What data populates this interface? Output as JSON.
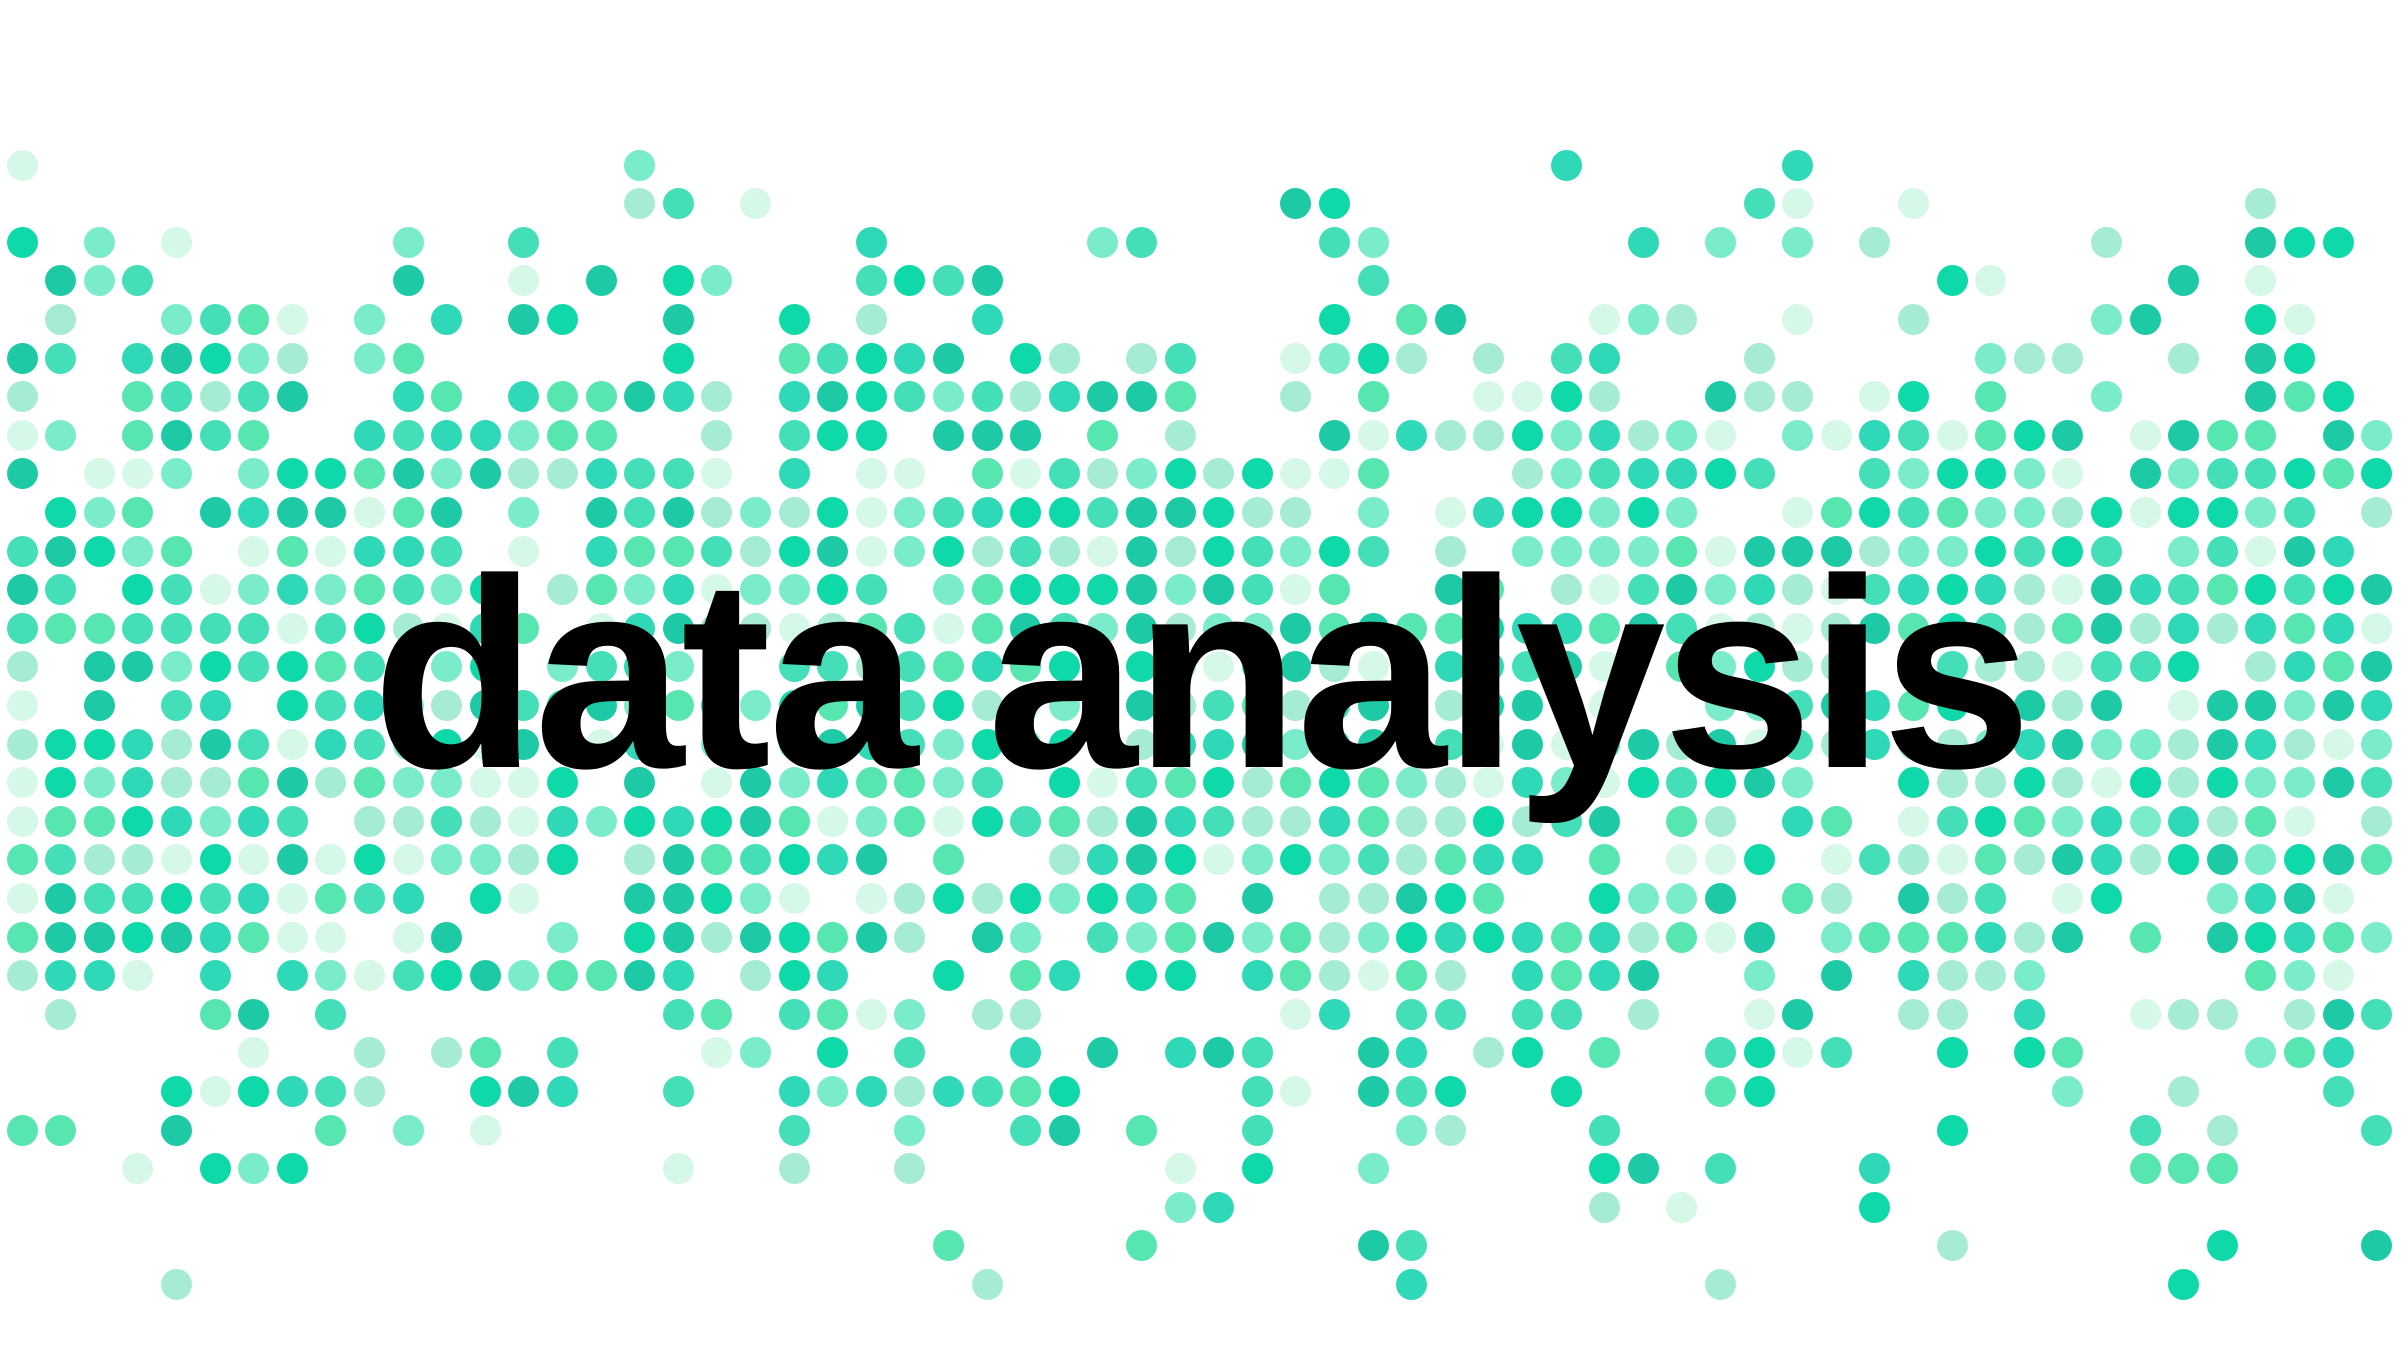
{
  "title": "data analysis",
  "colors": {
    "background": "#ffffff",
    "text": "#000000",
    "dot_palette": [
      "#0fd9a9",
      "#1ecaa6",
      "#2fd8b7",
      "#44deb8",
      "#58e6b0",
      "#7aeccb",
      "#a6ecd5",
      "#d6f8e6"
    ]
  }
}
